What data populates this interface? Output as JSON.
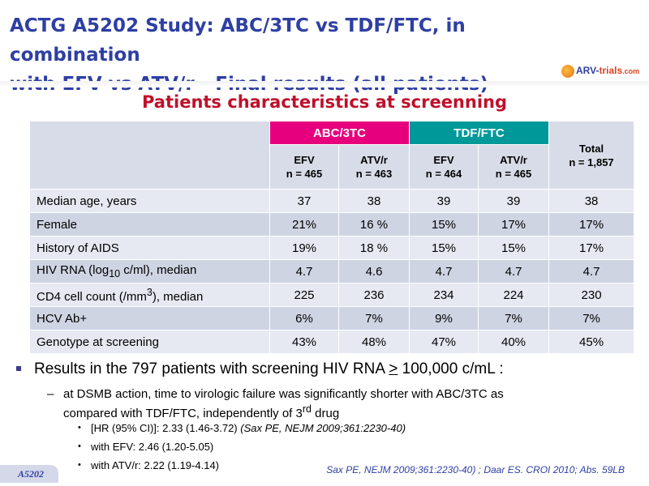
{
  "title_line1": "ACTG A5202 Study: ABC/3TC vs TDF/FTC, in combination",
  "title_line2": "with EFV vs ATV/r - Final results (all patients)",
  "logo": {
    "main": "ARV-",
    "trials": "trials",
    "com": ".com"
  },
  "subtitle": "Patients characteristics at screenning",
  "table": {
    "group_headers": [
      "ABC/3TC",
      "TDF/FTC"
    ],
    "sub_headers": [
      {
        "arm": "EFV",
        "n": "n = 465"
      },
      {
        "arm": "ATV/r",
        "n": "n = 463"
      },
      {
        "arm": "EFV",
        "n": "n = 464"
      },
      {
        "arm": "ATV/r",
        "n": "n = 465"
      }
    ],
    "total_header": {
      "label": "Total",
      "n": "n = 1,857"
    },
    "rows": [
      {
        "label": "Median age, years",
        "values": [
          "37",
          "38",
          "39",
          "39",
          "38"
        ]
      },
      {
        "label": "Female",
        "values": [
          "21%",
          "16 %",
          "15%",
          "17%",
          "17%"
        ]
      },
      {
        "label": "History of AIDS",
        "values": [
          "19%",
          "18 %",
          "15%",
          "15%",
          "17%"
        ]
      },
      {
        "label_pre": "HIV RNA (log",
        "label_sub": "10",
        "label_post": " c/ml), median",
        "values": [
          "4.7",
          "4.6",
          "4.7",
          "4.7",
          "4.7"
        ]
      },
      {
        "label_pre": "CD4 cell count (/mm",
        "label_sup": "3",
        "label_post": "), median",
        "values": [
          "225",
          "236",
          "234",
          "224",
          "230"
        ]
      },
      {
        "label": "HCV Ab+",
        "values": [
          "6%",
          "7%",
          "9%",
          "7%",
          "7%"
        ]
      },
      {
        "label": "Genotype at screening",
        "values": [
          "43%",
          "48%",
          "47%",
          "40%",
          "45%"
        ]
      }
    ]
  },
  "bullet1": {
    "pre": "Results in the 797 patients with screening HIV RNA ",
    "ge": ">",
    "post": " 100,000 c/mL :"
  },
  "bullet2": {
    "line1": "at DSMB action, time to virologic failure was significantly shorter with ABC/3TC as",
    "line2_pre": "compared with TDF/FTC, independently of 3",
    "line2_sup": "rd",
    "line2_post": " drug"
  },
  "bullet3": [
    {
      "text": "[HR (95% CI)]: 2.33 (1.46-3.72) ",
      "cite": "(Sax PE, NEJM 2009;361:2230-40)"
    },
    {
      "text": "with EFV: 2.46 (1.20-5.05)",
      "cite": ""
    },
    {
      "text": "with ATV/r: 2.22 (1.19-4.14)",
      "cite": ""
    }
  ],
  "study_tag": "A5202",
  "reference": "Sax PE, NEJM 2009;361:2230-40) ; Daar ES. CROI 2010; Abs. 59LB",
  "colors": {
    "title": "#2e3fa3",
    "subtitle": "#c0102a",
    "abc": "#e6007e",
    "tdf": "#009999"
  }
}
